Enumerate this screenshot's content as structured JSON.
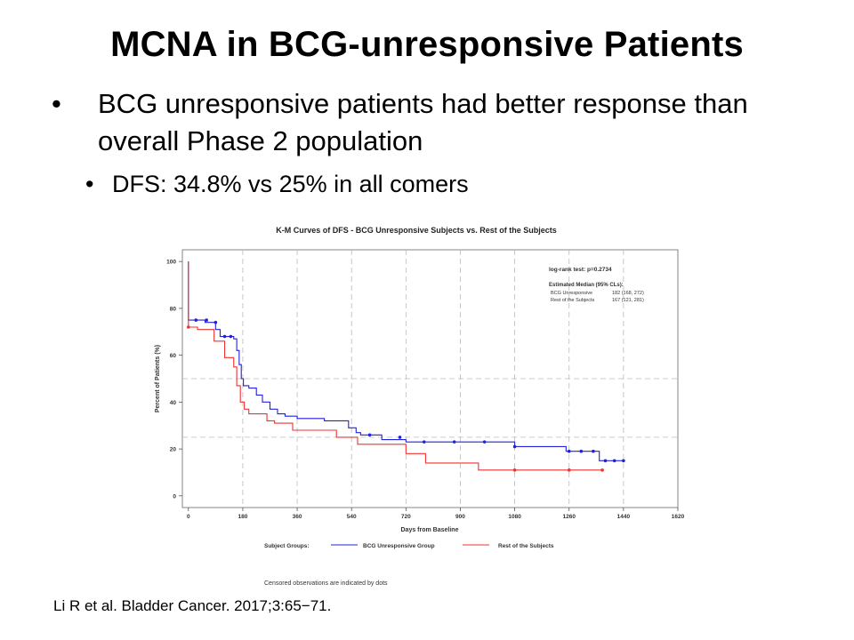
{
  "slide": {
    "title": "MCNA in BCG-unresponsive Patients",
    "bullets": [
      {
        "text": "BCG unresponsive patients had better response than overall Phase 2 population",
        "bullet": "•"
      },
      {
        "text": "DFS: 34.8% vs 25% in all comers",
        "bullet": "•"
      }
    ],
    "citation": "Li R et al. Bladder Cancer. 2017;3:65−71."
  },
  "chart_data": {
    "type": "line",
    "step": true,
    "title": "K-M Curves of DFS - BCG Unresponsive Subjects vs. Rest of the Subjects",
    "xlabel": "Days from Baseline",
    "ylabel": "Percent of Patients (%)",
    "xlim": [
      -20,
      1620
    ],
    "ylim": [
      -5,
      105
    ],
    "xticks": [
      0,
      180,
      360,
      540,
      720,
      900,
      1080,
      1260,
      1440,
      1620
    ],
    "yticks": [
      0,
      20,
      40,
      60,
      80,
      100
    ],
    "grid": {
      "vertical_dashed_at": [
        180,
        360,
        540,
        720,
        900,
        1080,
        1260,
        1440
      ],
      "horizontal_dashed_at": [
        50,
        25
      ]
    },
    "annotations": {
      "test": "log-rank test:  p=0.2734",
      "median_header": "Estimated Median (95% CLs):",
      "median_rows": [
        {
          "group": "BCG Unresponsive",
          "value": "182 (168, 272)"
        },
        {
          "group": "Rest of the Subjects",
          "value": "167 (121, 281)"
        }
      ]
    },
    "legend": {
      "label": "Subject Groups:",
      "position": "bottom"
    },
    "footnote": "Censored observations are indicated by dots",
    "series": [
      {
        "name": "BCG Unresponsive Group",
        "color": "#2222dd",
        "points": [
          [
            0,
            100
          ],
          [
            0,
            75
          ],
          [
            55,
            75
          ],
          [
            55,
            74
          ],
          [
            90,
            74
          ],
          [
            90,
            71
          ],
          [
            105,
            71
          ],
          [
            105,
            68
          ],
          [
            150,
            68
          ],
          [
            150,
            67
          ],
          [
            160,
            67
          ],
          [
            160,
            62
          ],
          [
            168,
            62
          ],
          [
            168,
            56
          ],
          [
            175,
            56
          ],
          [
            175,
            50
          ],
          [
            182,
            50
          ],
          [
            182,
            47
          ],
          [
            200,
            47
          ],
          [
            200,
            46
          ],
          [
            225,
            46
          ],
          [
            225,
            43
          ],
          [
            245,
            43
          ],
          [
            245,
            40
          ],
          [
            270,
            40
          ],
          [
            270,
            37
          ],
          [
            295,
            37
          ],
          [
            295,
            35
          ],
          [
            320,
            35
          ],
          [
            320,
            34
          ],
          [
            360,
            34
          ],
          [
            360,
            33
          ],
          [
            450,
            33
          ],
          [
            450,
            32
          ],
          [
            530,
            32
          ],
          [
            530,
            29
          ],
          [
            555,
            29
          ],
          [
            555,
            27
          ],
          [
            570,
            27
          ],
          [
            570,
            26
          ],
          [
            640,
            26
          ],
          [
            640,
            24
          ],
          [
            720,
            24
          ],
          [
            720,
            23
          ],
          [
            1080,
            23
          ],
          [
            1080,
            21
          ],
          [
            1250,
            21
          ],
          [
            1250,
            19
          ],
          [
            1360,
            19
          ],
          [
            1360,
            15
          ],
          [
            1440,
            15
          ]
        ],
        "censored": [
          [
            25,
            75
          ],
          [
            60,
            75
          ],
          [
            90,
            74
          ],
          [
            120,
            68
          ],
          [
            140,
            68
          ],
          [
            600,
            26
          ],
          [
            700,
            25
          ],
          [
            780,
            23
          ],
          [
            880,
            23
          ],
          [
            980,
            23
          ],
          [
            1080,
            21
          ],
          [
            1260,
            19
          ],
          [
            1300,
            19
          ],
          [
            1340,
            19
          ],
          [
            1380,
            15
          ],
          [
            1410,
            15
          ],
          [
            1440,
            15
          ]
        ]
      },
      {
        "name": "Rest of the Subjects",
        "color": "#ee3333",
        "points": [
          [
            0,
            100
          ],
          [
            0,
            72
          ],
          [
            30,
            72
          ],
          [
            30,
            71
          ],
          [
            85,
            71
          ],
          [
            85,
            66
          ],
          [
            120,
            66
          ],
          [
            120,
            59
          ],
          [
            150,
            59
          ],
          [
            150,
            55
          ],
          [
            160,
            55
          ],
          [
            160,
            47
          ],
          [
            172,
            47
          ],
          [
            172,
            40
          ],
          [
            185,
            40
          ],
          [
            185,
            37
          ],
          [
            200,
            37
          ],
          [
            200,
            35
          ],
          [
            260,
            35
          ],
          [
            260,
            32
          ],
          [
            285,
            32
          ],
          [
            285,
            31
          ],
          [
            345,
            31
          ],
          [
            345,
            28
          ],
          [
            490,
            28
          ],
          [
            490,
            25
          ],
          [
            560,
            25
          ],
          [
            560,
            22
          ],
          [
            720,
            22
          ],
          [
            720,
            18
          ],
          [
            785,
            18
          ],
          [
            785,
            14
          ],
          [
            960,
            14
          ],
          [
            960,
            11
          ],
          [
            1370,
            11
          ]
        ],
        "censored": [
          [
            0,
            72
          ],
          [
            1080,
            11
          ],
          [
            1260,
            11
          ],
          [
            1370,
            11
          ]
        ]
      }
    ]
  }
}
